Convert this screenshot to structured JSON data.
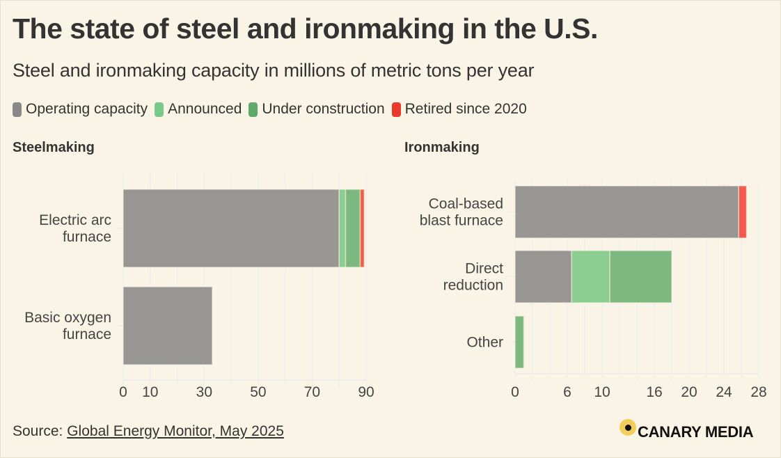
{
  "header": {
    "title": "The state of steel and ironmaking in the U.S.",
    "subtitle": "Steel and ironmaking capacity in millions of metric tons per year"
  },
  "legend": [
    {
      "key": "operating",
      "label": "Operating capacity",
      "color": "#979693"
    },
    {
      "key": "announced",
      "label": "Announced",
      "color": "#8ccd92"
    },
    {
      "key": "construction",
      "label": "Under construction",
      "color": "#7cb87f"
    },
    {
      "key": "retired",
      "label": "Retired since 2020",
      "color": "#f15b4c"
    }
  ],
  "legend_swatch_colors": {
    "operating": "#888888",
    "announced": "#79c98a",
    "construction": "#5fa96a",
    "retired": "#e8392b"
  },
  "chart_data": [
    {
      "type": "bar",
      "orientation": "horizontal",
      "stacked": true,
      "title": "Steelmaking",
      "categories": [
        [
          "Electric arc",
          "furnace"
        ],
        [
          "Basic oxygen",
          "furnace"
        ]
      ],
      "category_names": [
        "Electric arc furnace",
        "Basic oxygen furnace"
      ],
      "series": [
        {
          "name": "Operating capacity",
          "key": "operating",
          "values": [
            80,
            33
          ]
        },
        {
          "name": "Announced",
          "key": "announced",
          "values": [
            2.4,
            0
          ]
        },
        {
          "name": "Under construction",
          "key": "construction",
          "values": [
            5.4,
            0
          ]
        },
        {
          "name": "Retired since 2020",
          "key": "retired",
          "values": [
            1.5,
            0
          ]
        }
      ],
      "xlim": [
        0,
        90
      ],
      "ticks": [
        0,
        10,
        30,
        50,
        70,
        90
      ],
      "gridlines": [
        0,
        10,
        20,
        30,
        40,
        50,
        60,
        70,
        80,
        90
      ],
      "grid": true,
      "xlabel": "",
      "ylabel": ""
    },
    {
      "type": "bar",
      "orientation": "horizontal",
      "stacked": true,
      "title": "Ironmaking",
      "categories": [
        [
          "Coal-based",
          "blast furnace"
        ],
        [
          "Direct",
          "reduction"
        ],
        [
          "Other"
        ]
      ],
      "category_names": [
        "Coal-based blast furnace",
        "Direct reduction",
        "Other"
      ],
      "series": [
        {
          "name": "Operating capacity",
          "key": "operating",
          "values": [
            25.7,
            6.5,
            0
          ]
        },
        {
          "name": "Announced",
          "key": "announced",
          "values": [
            0,
            4.4,
            0
          ]
        },
        {
          "name": "Under construction",
          "key": "construction",
          "values": [
            0,
            7.1,
            1
          ]
        },
        {
          "name": "Retired since 2020",
          "key": "retired",
          "values": [
            0.9,
            0,
            0
          ]
        }
      ],
      "xlim": [
        0,
        28
      ],
      "ticks": [
        0,
        6,
        10,
        16,
        20,
        24,
        28
      ],
      "gridlines": [
        0,
        2,
        4,
        6,
        8,
        10,
        12,
        14,
        16,
        18,
        20,
        22,
        24,
        26,
        28
      ],
      "grid": true,
      "xlabel": "",
      "ylabel": ""
    }
  ],
  "footer": {
    "source_prefix": "Source: ",
    "source_link": "Global Energy Monitor, May 2025",
    "brand": "CANARY MEDIA",
    "brand_icon": "canary-dot-logo-icon"
  }
}
